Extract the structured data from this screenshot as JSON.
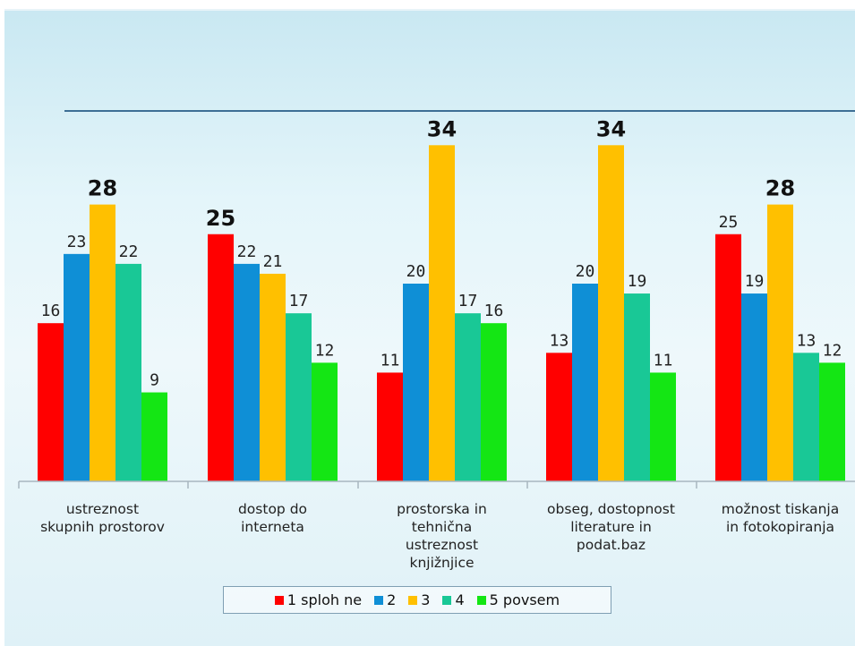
{
  "chart_data": {
    "type": "bar",
    "title": "",
    "xlabel": "",
    "ylabel": "",
    "ylim": [
      0,
      34
    ],
    "grid": false,
    "legend_position": "bottom",
    "categories": [
      [
        "ustreznost",
        "skupnih prostorov"
      ],
      [
        "dostop do",
        "interneta"
      ],
      [
        "prostorska  in",
        "tehnična",
        "ustreznost",
        "knjižnjice"
      ],
      [
        "obseg, dostopnost",
        "literature in",
        "podat.baz"
      ],
      [
        "možnost tiskanja",
        "in fotokopiranja"
      ]
    ],
    "series": [
      {
        "name": "1 sploh ne",
        "color": "#ff0000",
        "values": [
          16,
          25,
          11,
          13,
          25
        ]
      },
      {
        "name": "2",
        "color": "#0f8fd6",
        "values": [
          23,
          22,
          20,
          20,
          19
        ]
      },
      {
        "name": "3",
        "color": "#ffc000",
        "values": [
          28,
          21,
          34,
          34,
          28
        ]
      },
      {
        "name": "4",
        "color": "#19c896",
        "values": [
          22,
          17,
          17,
          19,
          13
        ]
      },
      {
        "name": "5 povsem",
        "color": "#14e614",
        "values": [
          9,
          12,
          16,
          11,
          12
        ]
      }
    ]
  }
}
